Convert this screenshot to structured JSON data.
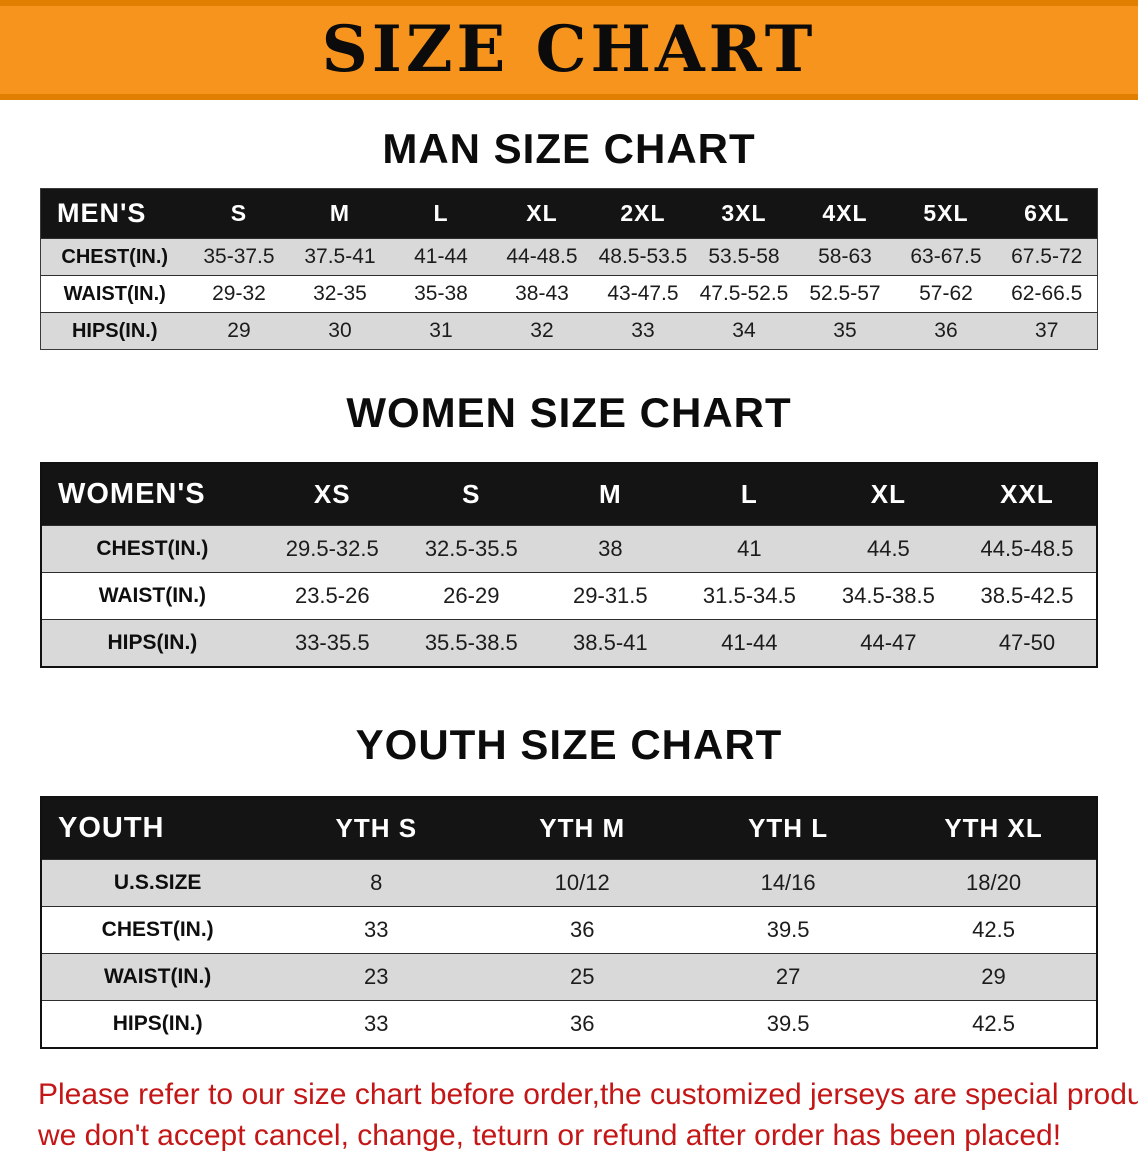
{
  "banner": {
    "title": "SIZE CHART"
  },
  "colors": {
    "banner_bg": "#f7941d",
    "table_header_bg": "#141414",
    "row_alt_gray": "#d9d9d9",
    "footer_red": "#c41616"
  },
  "chart_data": [
    {
      "type": "table",
      "title": "MAN SIZE CHART",
      "header": [
        "MEN'S",
        "S",
        "M",
        "L",
        "XL",
        "2XL",
        "3XL",
        "4XL",
        "5XL",
        "6XL"
      ],
      "rows": [
        [
          "CHEST(IN.)",
          "35-37.5",
          "37.5-41",
          "41-44",
          "44-48.5",
          "48.5-53.5",
          "53.5-58",
          "58-63",
          "63-67.5",
          "67.5-72"
        ],
        [
          "WAIST(IN.)",
          "29-32",
          "32-35",
          "35-38",
          "38-43",
          "43-47.5",
          "47.5-52.5",
          "52.5-57",
          "57-62",
          "62-66.5"
        ],
        [
          "HIPS(IN.)",
          "29",
          "30",
          "31",
          "32",
          "33",
          "34",
          "35",
          "36",
          "37"
        ]
      ]
    },
    {
      "type": "table",
      "title": "WOMEN SIZE CHART",
      "header": [
        "WOMEN'S",
        "XS",
        "S",
        "M",
        "L",
        "XL",
        "XXL"
      ],
      "rows": [
        [
          "CHEST(IN.)",
          "29.5-32.5",
          "32.5-35.5",
          "38",
          "41",
          "44.5",
          "44.5-48.5"
        ],
        [
          "WAIST(IN.)",
          "23.5-26",
          "26-29",
          "29-31.5",
          "31.5-34.5",
          "34.5-38.5",
          "38.5-42.5"
        ],
        [
          "HIPS(IN.)",
          "33-35.5",
          "35.5-38.5",
          "38.5-41",
          "41-44",
          "44-47",
          "47-50"
        ]
      ]
    },
    {
      "type": "table",
      "title": "YOUTH SIZE CHART",
      "header": [
        "YOUTH",
        "YTH S",
        "YTH M",
        "YTH L",
        "YTH XL"
      ],
      "rows": [
        [
          "U.S.SIZE",
          "8",
          "10/12",
          "14/16",
          "18/20"
        ],
        [
          "CHEST(IN.)",
          "33",
          "36",
          "39.5",
          "42.5"
        ],
        [
          "WAIST(IN.)",
          "23",
          "25",
          "27",
          "29"
        ],
        [
          "HIPS(IN.)",
          "33",
          "36",
          "39.5",
          "42.5"
        ]
      ]
    }
  ],
  "footer": {
    "line1": "Please refer to our size chart before order,the customized jerseys are special products,",
    "line2": "we don't accept cancel, change, teturn or refund after order has been placed!"
  }
}
